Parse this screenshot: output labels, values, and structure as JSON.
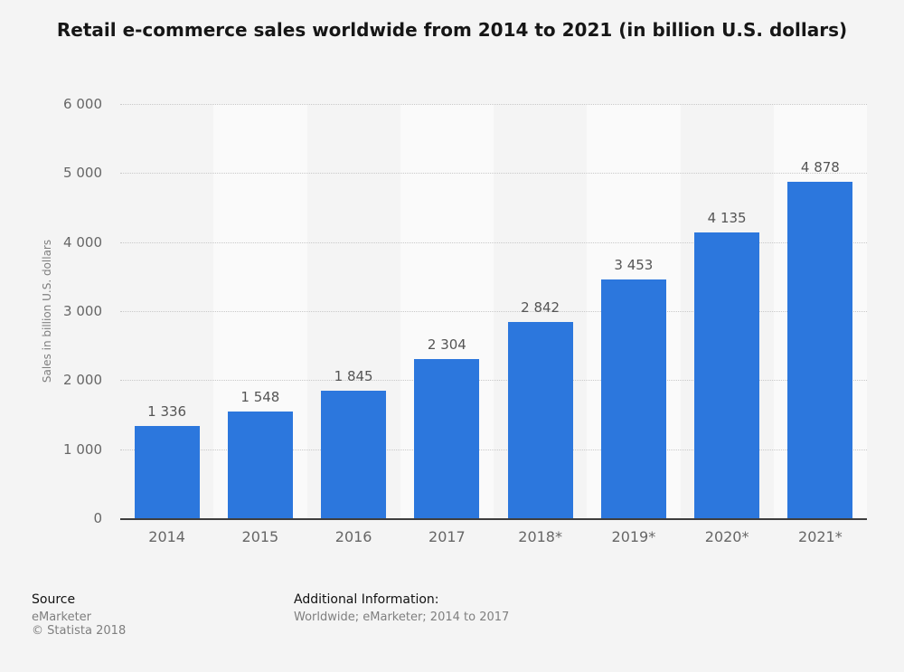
{
  "page": {
    "title": "Retail e-commerce sales worldwide from 2014 to 2021 (in billion U.S. dollars)"
  },
  "chart_data": {
    "type": "bar",
    "title": "Retail e-commerce sales worldwide from 2014 to 2021 (in billion U.S. dollars)",
    "categories": [
      "2014",
      "2015",
      "2016",
      "2017",
      "2018*",
      "2019*",
      "2020*",
      "2021*"
    ],
    "values": [
      1336,
      1548,
      1845,
      2304,
      2842,
      3453,
      4135,
      4878
    ],
    "value_labels": [
      "1 336",
      "1 548",
      "1 845",
      "2 304",
      "2 842",
      "3 453",
      "4 135",
      "4 878"
    ],
    "xlabel": "",
    "ylabel": "Sales in billion U.S. dollars",
    "ylim": [
      0,
      6000
    ],
    "yticks": [
      0,
      1000,
      2000,
      3000,
      4000,
      5000,
      6000
    ],
    "ytick_labels": [
      "0",
      "1 000",
      "2 000",
      "3 000",
      "4 000",
      "5 000",
      "6 000"
    ],
    "grid": "horizontal-dotted",
    "legend": "none",
    "bar_color": "#2c77dd"
  },
  "footer": {
    "source_label": "Source",
    "source_lines": [
      "eMarketer",
      "© Statista 2018"
    ],
    "additional_label": "Additional Information:",
    "additional_line": "Worldwide; eMarketer; 2014 to 2017"
  },
  "colors": {
    "page_background": "#f4f4f4",
    "plot_band_light": "#fafafa",
    "bar": "#2c77dd",
    "axis_line": "#3e3e3e",
    "gridline": "#c9c9c9",
    "tick_text": "#666666",
    "value_text": "#555555",
    "title_text": "#161616",
    "footer_gray": "#7f7f7f"
  }
}
